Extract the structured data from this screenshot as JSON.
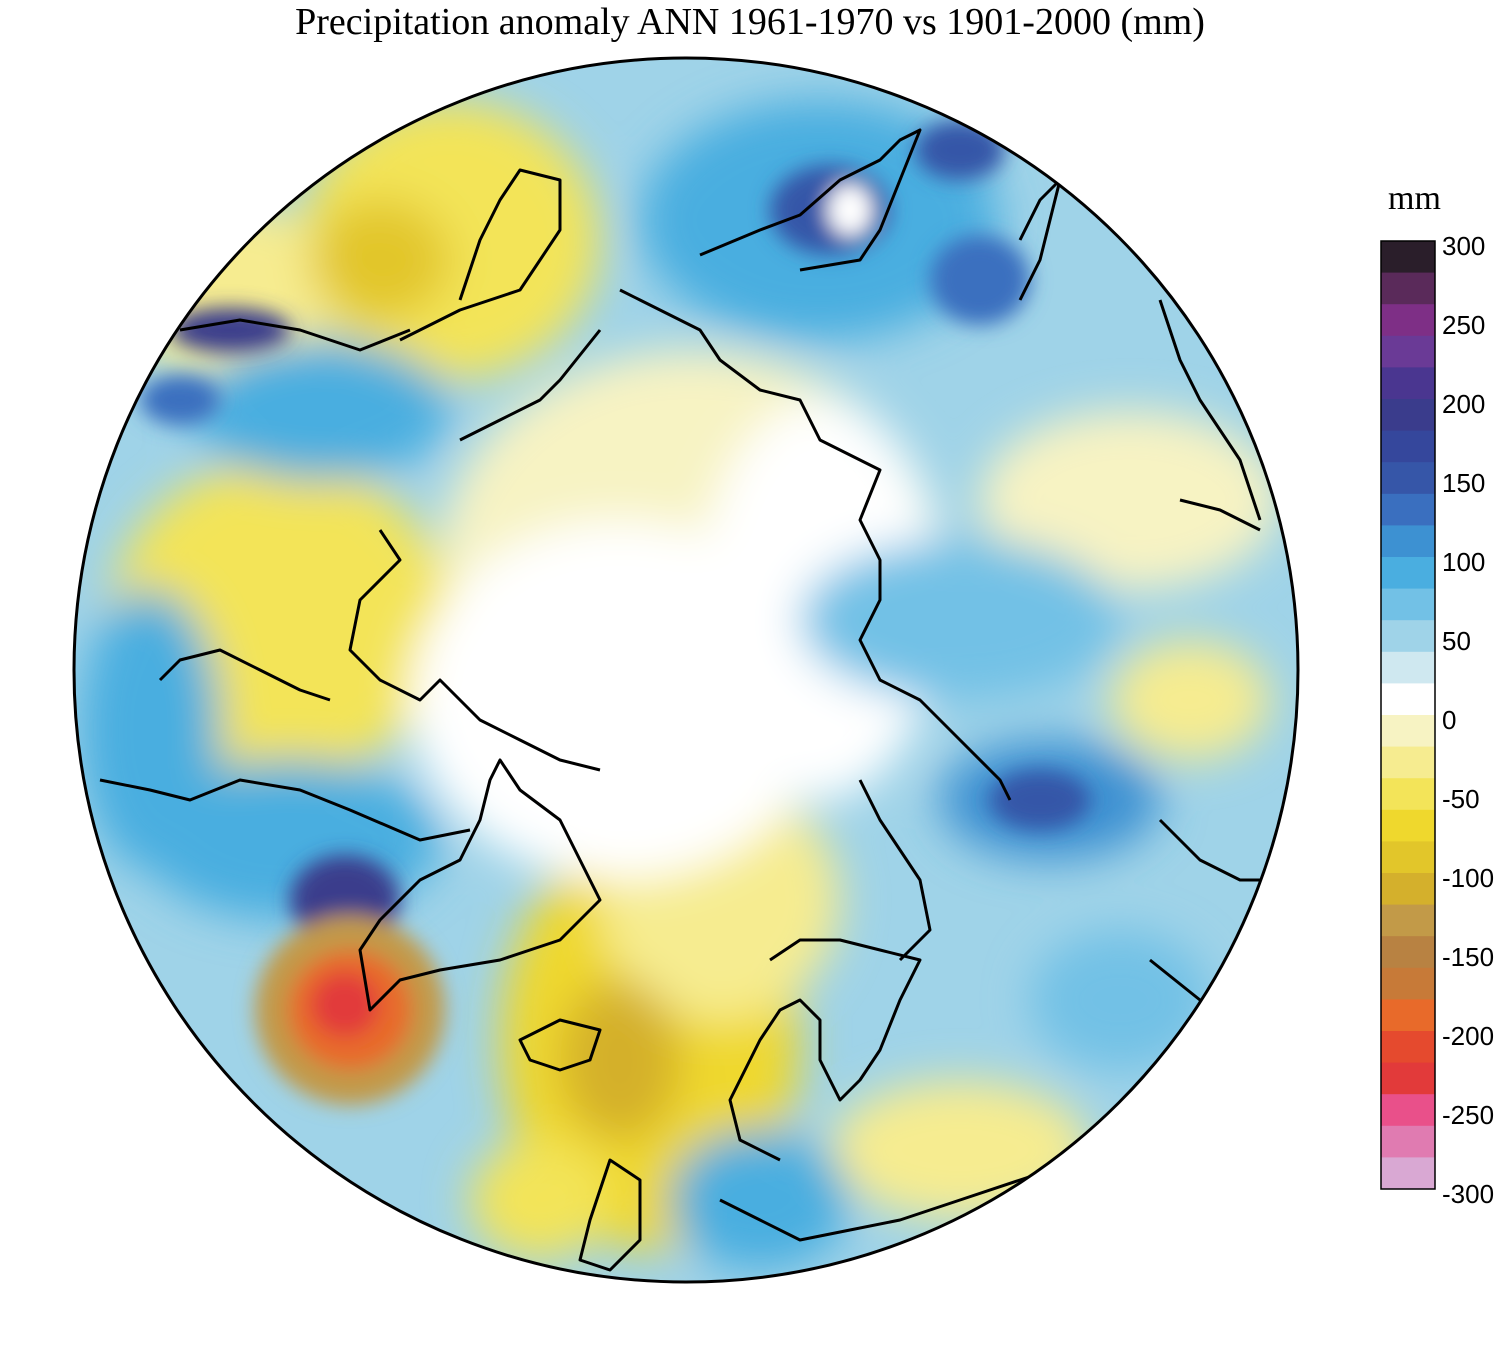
{
  "title": "Precipitation anomaly ANN 1961-1970 vs 1901-2000 (mm)",
  "colorbar": {
    "unit": "mm",
    "min": -300,
    "max": 300,
    "ticks": [
      "300",
      "250",
      "200",
      "150",
      "100",
      "50",
      "0",
      "-50",
      "-100",
      "-150",
      "-200",
      "-250",
      "-300"
    ],
    "colors": [
      "#d9a8d3",
      "#e07bb1",
      "#e9508a",
      "#e23a3a",
      "#e54a2e",
      "#e86a2a",
      "#c77a38",
      "#b88242",
      "#c29a48",
      "#d4b02c",
      "#e2c62a",
      "#efd82d",
      "#f3e459",
      "#f6ec90",
      "#f7f3c3",
      "#ffffff",
      "#cfe8f0",
      "#9fd3e8",
      "#72c1e6",
      "#4aaee0",
      "#3d91d2",
      "#3a6fbf",
      "#3656a8",
      "#35479c",
      "#3a3c8c",
      "#4a3690",
      "#6a3a96",
      "#7e2f86",
      "#5a2a5a",
      "#2a1e2a"
    ]
  },
  "map": {
    "projection": "north polar stereographic",
    "region": "Northern Hemisphere",
    "anomaly_regions": [
      {
        "area": "southern Greenland",
        "level": "-200",
        "color": "#e23a3a"
      },
      {
        "area": "northeast Canada",
        "level": "+150",
        "color": "#3a3c8c"
      },
      {
        "area": "central Arctic",
        "level": "-10",
        "color": "#f7f3c3"
      },
      {
        "area": "northern Atlantic",
        "level": "-50",
        "color": "#efd82d"
      },
      {
        "area": "Siberia",
        "level": "+50",
        "color": "#72c1e6"
      },
      {
        "area": "Alaska coast",
        "level": "+200",
        "color": "#3656a8"
      }
    ]
  }
}
